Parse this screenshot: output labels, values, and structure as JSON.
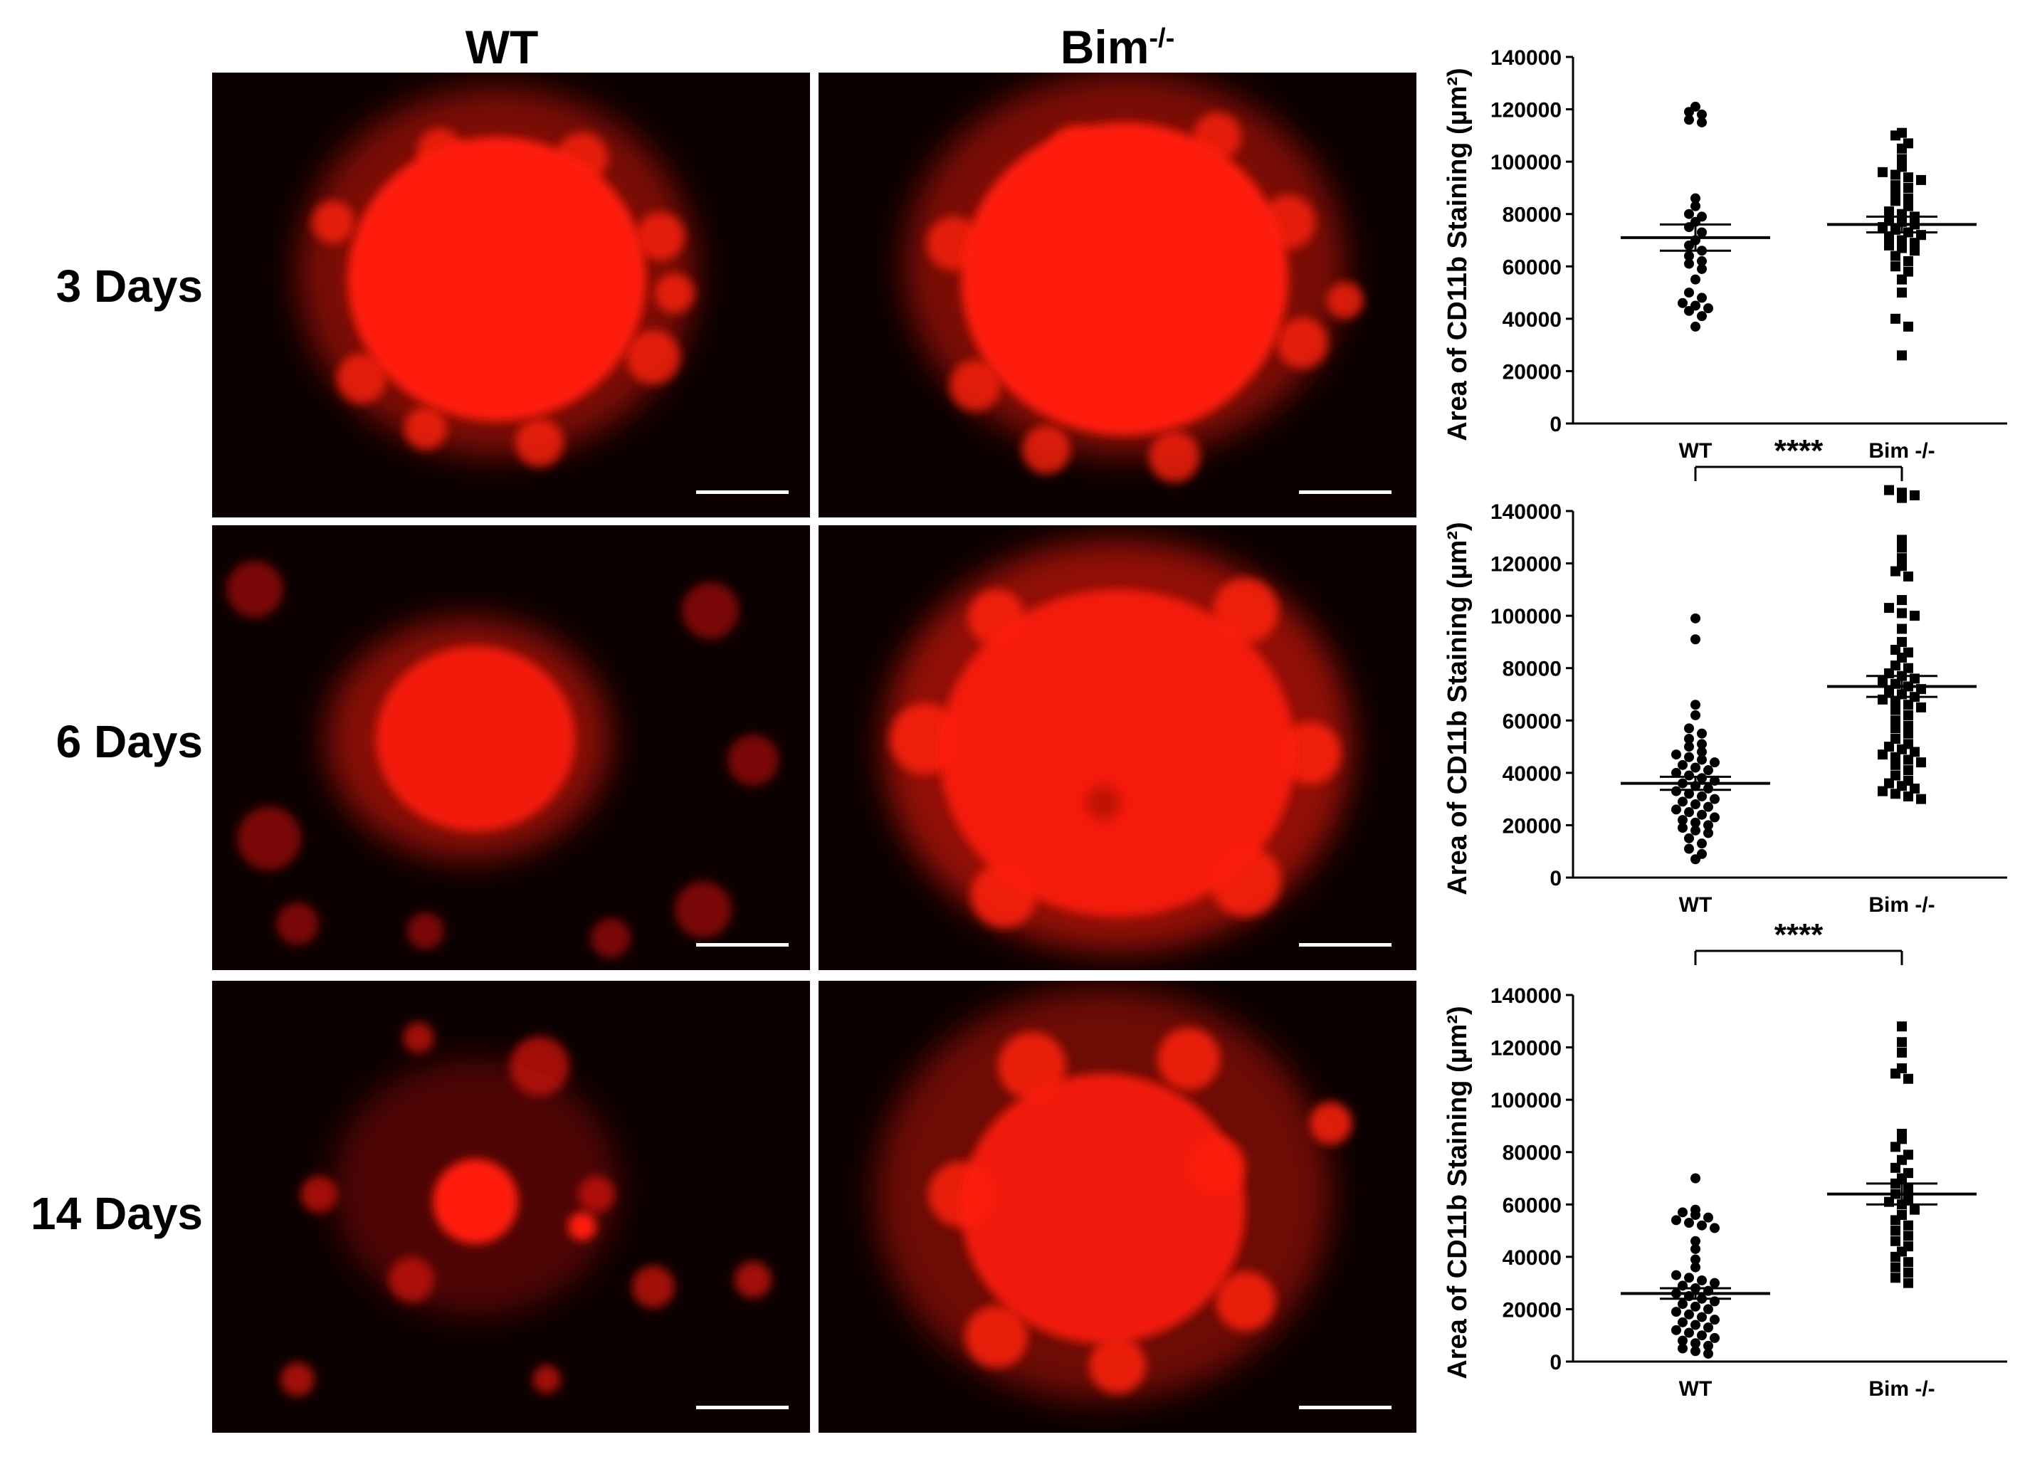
{
  "columns": [
    {
      "label": "WT",
      "sup": ""
    },
    {
      "label": "Bim",
      "sup": "-/-"
    }
  ],
  "rows": [
    "3 Days",
    "6 Days",
    "14 Days"
  ],
  "colors": {
    "background": "#ffffff",
    "micrograph_bg": "#0c0000",
    "stain": "#ff1a0a",
    "scale_bar": "#ffffff",
    "points": "#000000"
  },
  "chart_data": [
    {
      "type": "scatter",
      "ylabel": "Area of CD11b Staining (µm²)",
      "categories": [
        "WT",
        "Bim -/-"
      ],
      "ylim": [
        0,
        140000
      ],
      "yticks": [
        0,
        20000,
        40000,
        60000,
        80000,
        100000,
        120000,
        140000
      ],
      "yticklabels": [
        "0",
        "20000",
        "40000",
        "60000",
        "80000",
        "100000",
        "120000",
        "140000"
      ],
      "significance": "",
      "series": [
        {
          "category": "WT",
          "mean": 71000,
          "sem": 5000,
          "values": [
            121000,
            119000,
            118000,
            116000,
            115000,
            86000,
            83000,
            80000,
            79000,
            77000,
            75000,
            73000,
            70000,
            68000,
            66000,
            64000,
            62000,
            61000,
            59000,
            55000,
            50000,
            48000,
            46000,
            45000,
            44000,
            43000,
            41000,
            37000
          ]
        },
        {
          "category": "Bim -/-",
          "mean": 76000,
          "sem": 3000,
          "values": [
            111000,
            110000,
            107000,
            105000,
            101000,
            98000,
            96000,
            95000,
            94000,
            93000,
            91000,
            90000,
            88000,
            86000,
            85000,
            83000,
            81000,
            80000,
            79000,
            78000,
            77000,
            76000,
            75000,
            74000,
            73000,
            72000,
            71000,
            70000,
            69000,
            68000,
            67000,
            66000,
            64000,
            62000,
            60000,
            58000,
            55000,
            50000,
            40000,
            37000,
            26000
          ]
        }
      ]
    },
    {
      "type": "scatter",
      "ylabel": "Area of CD11b Staining (µm²)",
      "categories": [
        "WT",
        "Bim -/-"
      ],
      "ylim": [
        0,
        140000
      ],
      "yticks": [
        0,
        20000,
        40000,
        60000,
        80000,
        100000,
        120000,
        140000
      ],
      "yticklabels": [
        "0",
        "20000",
        "40000",
        "60000",
        "80000",
        "100000",
        "120000",
        "140000"
      ],
      "significance": "****",
      "series": [
        {
          "category": "WT",
          "mean": 36000,
          "sem": 2500,
          "values": [
            99000,
            91000,
            66000,
            62000,
            57000,
            55000,
            53000,
            51000,
            50000,
            48000,
            47000,
            46000,
            45000,
            44000,
            43000,
            42000,
            41000,
            40000,
            39000,
            38000,
            37000,
            36000,
            35000,
            34000,
            33000,
            32000,
            31000,
            30000,
            29000,
            28000,
            27000,
            26000,
            25000,
            24000,
            23000,
            22000,
            21000,
            20000,
            19000,
            18000,
            17000,
            15000,
            13000,
            11000,
            9000,
            7000
          ]
        },
        {
          "category": "Bim -/-",
          "mean": 73000,
          "sem": 4000,
          "values": [
            148000,
            147000,
            146000,
            145000,
            129000,
            126000,
            122000,
            119000,
            117000,
            115000,
            106000,
            103000,
            101000,
            100000,
            95000,
            90000,
            87000,
            86000,
            84000,
            81000,
            80000,
            78000,
            77000,
            76000,
            75000,
            74000,
            73000,
            72000,
            71000,
            70000,
            69000,
            68000,
            67000,
            66000,
            65000,
            64000,
            62000,
            60000,
            58000,
            57000,
            55000,
            53000,
            51000,
            50000,
            49000,
            48000,
            47000,
            46000,
            45000,
            44000,
            43000,
            41000,
            39000,
            37000,
            36000,
            35000,
            34000,
            33000,
            32000,
            31000,
            30000
          ]
        }
      ]
    },
    {
      "type": "scatter",
      "ylabel": "Area of CD11b Staining (µm²)",
      "categories": [
        "WT",
        "Bim -/-"
      ],
      "ylim": [
        0,
        140000
      ],
      "yticks": [
        0,
        20000,
        40000,
        60000,
        80000,
        100000,
        120000,
        140000
      ],
      "yticklabels": [
        "0",
        "20000",
        "40000",
        "60000",
        "80000",
        "100000",
        "120000",
        "140000"
      ],
      "significance": "****",
      "series": [
        {
          "category": "WT",
          "mean": 26000,
          "sem": 2000,
          "values": [
            70000,
            58000,
            57000,
            56000,
            55000,
            54000,
            53000,
            52000,
            51000,
            46000,
            43000,
            39000,
            36000,
            33000,
            32000,
            31000,
            30000,
            29000,
            28000,
            27000,
            26000,
            25000,
            24000,
            23000,
            22000,
            21000,
            20000,
            19000,
            18000,
            17000,
            16000,
            15000,
            14000,
            13000,
            12000,
            11000,
            10000,
            9000,
            8000,
            7000,
            6000,
            5000,
            4000,
            3000
          ]
        },
        {
          "category": "Bim -/-",
          "mean": 64000,
          "sem": 4000,
          "values": [
            128000,
            122000,
            118000,
            112000,
            110000,
            108000,
            87000,
            85000,
            82000,
            79000,
            77000,
            74000,
            72000,
            70000,
            68000,
            66000,
            64000,
            62000,
            61000,
            60000,
            58000,
            56000,
            54000,
            52000,
            50000,
            48000,
            46000,
            44000,
            42000,
            40000,
            38000,
            36000,
            34000,
            32000,
            30000
          ]
        }
      ]
    }
  ]
}
